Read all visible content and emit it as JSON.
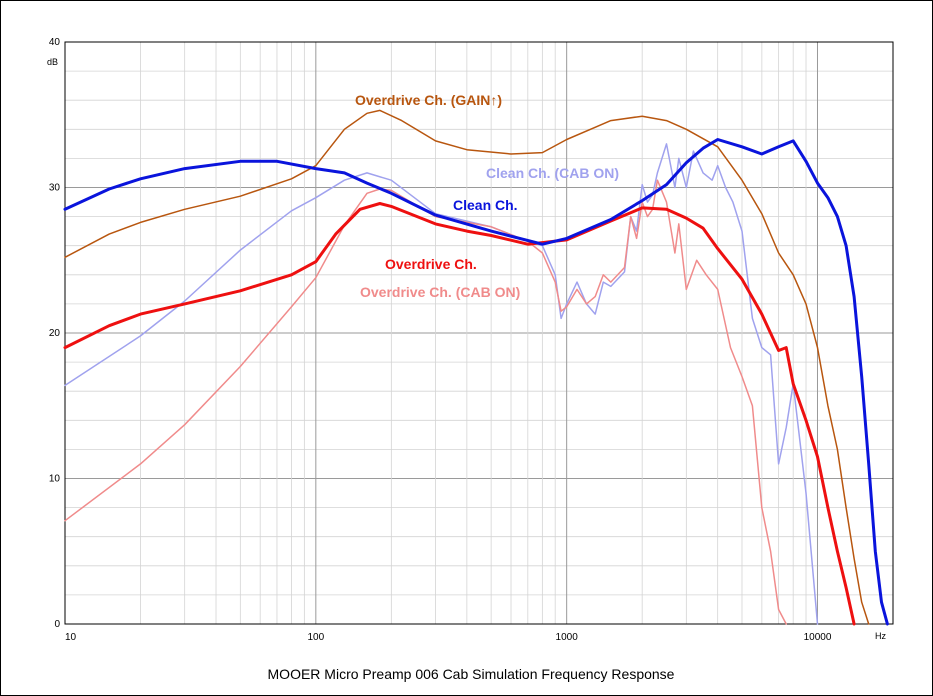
{
  "chart_data": {
    "type": "line",
    "title": "MOOER Micro Preamp 006 Cab Simulation Frequency Response",
    "xlabel": "Hz",
    "ylabel": "dB",
    "xscale": "log",
    "xlim": [
      10,
      20000
    ],
    "ylim": [
      0,
      40
    ],
    "grid": true,
    "legend": "inline labels",
    "x_tick_labels": [
      "10",
      "100",
      "1000",
      "10000"
    ],
    "x_tick_values": [
      10,
      100,
      1000,
      10000
    ],
    "y_tick_labels": [
      "0",
      "10",
      "20",
      "30",
      "40"
    ],
    "y_tick_values": [
      0,
      10,
      20,
      30,
      40
    ],
    "series": [
      {
        "name": "Overdrive Ch. (GAIN↑)",
        "color": "#b8560f",
        "x": [
          10,
          15,
          20,
          30,
          50,
          80,
          100,
          130,
          160,
          180,
          220,
          300,
          400,
          600,
          800,
          1000,
          1500,
          2000,
          2500,
          3000,
          4000,
          5000,
          6000,
          7000,
          8000,
          9000,
          10000,
          11000,
          12000,
          13000,
          14000,
          15000,
          16000
        ],
        "y": [
          25.2,
          26.8,
          27.6,
          28.5,
          29.4,
          30.6,
          31.5,
          34.0,
          35.1,
          35.3,
          34.6,
          33.2,
          32.6,
          32.3,
          32.4,
          33.3,
          34.6,
          34.9,
          34.6,
          34.0,
          32.8,
          30.5,
          28.2,
          25.5,
          24.0,
          22.0,
          19.0,
          15.0,
          12.0,
          8.0,
          4.5,
          1.5,
          0
        ]
      },
      {
        "name": "Clean Ch.",
        "color": "#0a14dc",
        "x": [
          10,
          15,
          20,
          30,
          50,
          70,
          100,
          130,
          160,
          200,
          300,
          500,
          800,
          1000,
          1500,
          2000,
          2500,
          3000,
          3500,
          4000,
          5000,
          6000,
          7000,
          8000,
          9000,
          10000,
          11000,
          12000,
          13000,
          14000,
          15000,
          16000,
          17000,
          18000,
          19000
        ],
        "y": [
          28.5,
          29.9,
          30.6,
          31.3,
          31.8,
          31.8,
          31.3,
          31.0,
          30.3,
          29.6,
          28.1,
          27.0,
          26.1,
          26.5,
          27.8,
          29.1,
          30.2,
          31.7,
          32.7,
          33.3,
          32.8,
          32.3,
          32.8,
          33.2,
          31.8,
          30.3,
          29.3,
          28.0,
          26.0,
          22.5,
          17.0,
          11.0,
          5.0,
          1.5,
          0
        ]
      },
      {
        "name": "Clean Ch. (CAB ON)",
        "color": "#a0a2ee",
        "x": [
          10,
          20,
          30,
          50,
          80,
          100,
          130,
          160,
          200,
          300,
          500,
          700,
          800,
          900,
          950,
          1000,
          1100,
          1200,
          1300,
          1400,
          1500,
          1700,
          1800,
          1900,
          2000,
          2100,
          2200,
          2300,
          2500,
          2700,
          2800,
          3000,
          3200,
          3500,
          3800,
          4000,
          4300,
          4600,
          5000,
          5500,
          6000,
          6500,
          7000,
          7500,
          8000,
          9000,
          10000
        ],
        "y": [
          16.4,
          19.8,
          22.2,
          25.7,
          28.4,
          29.3,
          30.5,
          31.0,
          30.5,
          28.2,
          27.3,
          26.3,
          26.0,
          24.0,
          21.0,
          22.0,
          23.5,
          22.0,
          21.3,
          23.5,
          23.2,
          24.2,
          28.0,
          27.0,
          30.2,
          29.0,
          29.5,
          31.0,
          33.0,
          30.0,
          32.0,
          30.0,
          32.5,
          31.0,
          30.5,
          31.5,
          30.0,
          29.0,
          27.0,
          21.0,
          19.0,
          18.5,
          11.0,
          13.5,
          16.5,
          9.0,
          0
        ]
      },
      {
        "name": "Overdrive Ch.",
        "color": "#ee1010",
        "x": [
          10,
          15,
          20,
          30,
          50,
          80,
          100,
          120,
          150,
          180,
          200,
          300,
          400,
          500,
          700,
          1000,
          1500,
          2000,
          2500,
          3000,
          3500,
          4000,
          5000,
          6000,
          7000,
          7500,
          8000,
          9000,
          10000,
          11000,
          12000,
          13000,
          14000
        ],
        "y": [
          19.0,
          20.5,
          21.3,
          22.0,
          22.9,
          24.0,
          24.9,
          26.8,
          28.5,
          28.9,
          28.7,
          27.5,
          27.0,
          26.7,
          26.1,
          26.4,
          27.7,
          28.6,
          28.5,
          27.9,
          27.2,
          25.8,
          23.7,
          21.3,
          18.8,
          19.0,
          16.5,
          14.0,
          11.5,
          8.0,
          5.0,
          2.5,
          0
        ]
      },
      {
        "name": "Overdrive Ch. (CAB ON)",
        "color": "#f08b8b",
        "x": [
          10,
          20,
          30,
          50,
          80,
          100,
          130,
          160,
          180,
          200,
          300,
          500,
          700,
          800,
          900,
          950,
          1000,
          1100,
          1200,
          1300,
          1400,
          1500,
          1700,
          1800,
          1900,
          2000,
          2100,
          2200,
          2300,
          2500,
          2700,
          2800,
          3000,
          3300,
          3600,
          4000,
          4500,
          5000,
          5500,
          6000,
          6500,
          7000,
          7500
        ],
        "y": [
          7.1,
          11.0,
          13.7,
          17.7,
          21.8,
          23.8,
          27.4,
          29.6,
          29.9,
          29.8,
          28.0,
          27.3,
          26.3,
          25.5,
          23.5,
          21.5,
          21.8,
          23.0,
          22.0,
          22.5,
          24.0,
          23.5,
          24.5,
          28.0,
          26.5,
          29.0,
          28.0,
          28.5,
          30.5,
          29.0,
          25.5,
          27.5,
          23.0,
          25.0,
          24.0,
          23.0,
          19.0,
          17.0,
          15.0,
          8.0,
          5.0,
          1.0,
          0
        ]
      }
    ]
  }
}
